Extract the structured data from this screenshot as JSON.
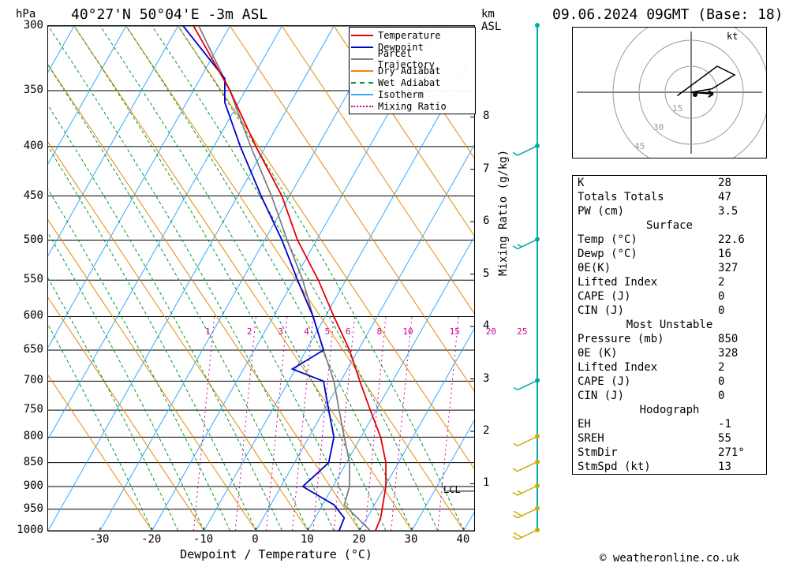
{
  "header": {
    "location": "40°27'N 50°04'E -3m ASL",
    "datetime": "09.06.2024 09GMT (Base: 18)"
  },
  "axes": {
    "left_label": "hPa",
    "right_label_top": "km",
    "right_label_asl": "ASL",
    "xlabel": "Dewpoint / Temperature (°C)",
    "y2label": "Mixing Ratio (g/kg)",
    "pressures": [
      300,
      350,
      400,
      450,
      500,
      550,
      600,
      650,
      700,
      750,
      800,
      850,
      900,
      950,
      1000
    ],
    "heights_km": [
      1,
      2,
      3,
      4,
      5,
      6,
      7,
      8
    ],
    "xticks": [
      -30,
      -20,
      -10,
      0,
      10,
      20,
      30,
      40
    ],
    "xlim": [
      -40,
      42
    ],
    "lcl_text": "LCL",
    "mixing_labels": [
      "1",
      "2",
      "3",
      "4",
      "5",
      "6",
      "8",
      "10",
      "15",
      "20",
      "25"
    ]
  },
  "legend": [
    {
      "label": "Temperature",
      "color": "#e60000",
      "dash": "none"
    },
    {
      "label": "Dewpoint",
      "color": "#0000cc",
      "dash": "none"
    },
    {
      "label": "Parcel Trajectory",
      "color": "#808080",
      "dash": "none"
    },
    {
      "label": "Dry Adiabat",
      "color": "#e68a00",
      "dash": "none"
    },
    {
      "label": "Wet Adiabat",
      "color": "#009933",
      "dash": "4,3"
    },
    {
      "label": "Isotherm",
      "color": "#33aaff",
      "dash": "none"
    },
    {
      "label": "Mixing Ratio",
      "color": "#cc0099",
      "dash": "2,3"
    }
  ],
  "profiles": {
    "temperature": [
      [
        23,
        1000
      ],
      [
        24,
        970
      ],
      [
        25,
        900
      ],
      [
        25,
        850
      ],
      [
        24,
        800
      ],
      [
        22,
        750
      ],
      [
        20,
        700
      ],
      [
        18,
        650
      ],
      [
        15,
        600
      ],
      [
        12,
        550
      ],
      [
        8,
        500
      ],
      [
        5,
        450
      ],
      [
        0,
        400
      ],
      [
        -5,
        350
      ],
      [
        -12,
        300
      ]
    ],
    "dewpoint": [
      [
        16,
        1000
      ],
      [
        17,
        970
      ],
      [
        15,
        940
      ],
      [
        9,
        900
      ],
      [
        12,
        870
      ],
      [
        14,
        850
      ],
      [
        15,
        800
      ],
      [
        14,
        750
      ],
      [
        13,
        700
      ],
      [
        7,
        680
      ],
      [
        13,
        650
      ],
      [
        11,
        600
      ],
      [
        8,
        550
      ],
      [
        5,
        500
      ],
      [
        1,
        450
      ],
      [
        -3,
        400
      ],
      [
        -6,
        360
      ],
      [
        -6,
        340
      ],
      [
        -14,
        300
      ]
    ],
    "parcel": [
      [
        22,
        1000
      ],
      [
        17,
        940
      ],
      [
        18,
        900
      ],
      [
        18,
        850
      ],
      [
        17,
        800
      ],
      [
        16,
        750
      ],
      [
        15,
        700
      ],
      [
        13,
        650
      ],
      [
        11,
        600
      ],
      [
        9,
        550
      ],
      [
        6,
        500
      ],
      [
        3,
        450
      ],
      [
        -1,
        400
      ],
      [
        -5,
        350
      ],
      [
        -11,
        300
      ]
    ]
  },
  "colors": {
    "temperature": "#e60000",
    "dewpoint": "#0000cc",
    "parcel": "#808080",
    "dry_adiabat": "#e68a00",
    "wet_adiabat": "#009933",
    "isotherm": "#33aaff",
    "mixing_ratio": "#cc0099",
    "wind_col": "#00aaaa",
    "hodograph_grid": "#999999",
    "background": "#ffffff"
  },
  "hodograph": {
    "label": "kt",
    "rings": [
      15,
      30,
      45
    ],
    "points": [
      [
        0,
        0
      ],
      [
        12,
        -2
      ],
      [
        25,
        -10
      ],
      [
        15,
        -15
      ],
      [
        -8,
        2
      ]
    ]
  },
  "indices": {
    "general": [
      {
        "name": "K",
        "value": "28"
      },
      {
        "name": "Totals Totals",
        "value": "47"
      },
      {
        "name": "PW (cm)",
        "value": "3.5"
      }
    ],
    "surface_header": "Surface",
    "surface": [
      {
        "name": "Temp (°C)",
        "value": "22.6"
      },
      {
        "name": "Dewp (°C)",
        "value": "16"
      },
      {
        "name": "θE(K)",
        "value": "327"
      },
      {
        "name": "Lifted Index",
        "value": "2"
      },
      {
        "name": "CAPE (J)",
        "value": "0"
      },
      {
        "name": "CIN (J)",
        "value": "0"
      }
    ],
    "most_unstable_header": "Most Unstable",
    "most_unstable": [
      {
        "name": "Pressure (mb)",
        "value": "850"
      },
      {
        "name": "θE (K)",
        "value": "328"
      },
      {
        "name": "Lifted Index",
        "value": "2"
      },
      {
        "name": "CAPE (J)",
        "value": "0"
      },
      {
        "name": "CIN (J)",
        "value": "0"
      }
    ],
    "hodograph_header": "Hodograph",
    "hodograph": [
      {
        "name": "EH",
        "value": "-1"
      },
      {
        "name": "SREH",
        "value": "55"
      },
      {
        "name": "StmDir",
        "value": "271°"
      },
      {
        "name": "StmSpd (kt)",
        "value": "13"
      }
    ]
  },
  "wind_barbs": [
    {
      "p": 1000,
      "type": "full2",
      "color": "#ccaa00"
    },
    {
      "p": 950,
      "type": "full2",
      "color": "#ccaa00"
    },
    {
      "p": 900,
      "type": "full1half",
      "color": "#ccaa00"
    },
    {
      "p": 850,
      "type": "full1",
      "color": "#ccaa00"
    },
    {
      "p": 800,
      "type": "half",
      "color": "#ccaa00"
    },
    {
      "p": 700,
      "type": "half",
      "color": "#00aaaa"
    },
    {
      "p": 500,
      "type": "full1half",
      "color": "#00aaaa"
    },
    {
      "p": 400,
      "type": "full1",
      "color": "#00aaaa"
    },
    {
      "p": 300,
      "type": "dot",
      "color": "#00aaaa"
    }
  ],
  "copyright": "© weatheronline.co.uk"
}
